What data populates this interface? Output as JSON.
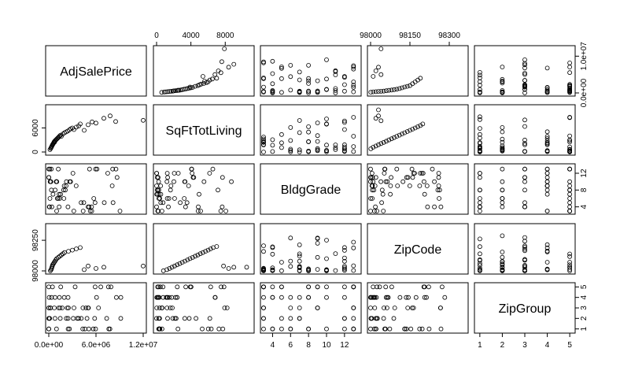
{
  "chart_data": {
    "type": "scatter",
    "subtype": "scatterplot-matrix",
    "title": "",
    "variables": [
      {
        "name": "AdjSalePrice",
        "range": [
          0,
          12000000
        ],
        "ticks": [
          0,
          6000000,
          12000000
        ],
        "tick_labels": [
          "0.0e+00",
          "6.0e+06",
          "1.2e+07"
        ],
        "axis_side": "bottom"
      },
      {
        "name": "SqFtTotLiving",
        "range": [
          0,
          11000
        ],
        "ticks": [
          0,
          4000,
          8000
        ],
        "tick_labels": [
          "0",
          "4000",
          "8000"
        ],
        "axis_side": "top"
      },
      {
        "name": "BldgGrade",
        "range": [
          3,
          13.5
        ],
        "ticks": [
          4,
          6,
          8,
          10,
          12
        ],
        "tick_labels": [
          "4",
          "6",
          "8",
          "10",
          "12"
        ],
        "axis_side": "bottom"
      },
      {
        "name": "ZipCode",
        "range": [
          98000,
          98360
        ],
        "ticks": [
          98000,
          98150,
          98300
        ],
        "tick_labels": [
          "98000",
          "98150",
          "98300"
        ],
        "axis_side": "top"
      },
      {
        "name": "ZipGroup",
        "range": [
          0.9,
          5.1
        ],
        "ticks": [
          1,
          2,
          3,
          4,
          5
        ],
        "tick_labels": [
          "1",
          "2",
          "3",
          "4",
          "5"
        ],
        "axis_side": "bottom"
      }
    ],
    "left_axes": [
      {
        "var": 1,
        "ticks": [
          0,
          6000
        ],
        "tick_labels": [
          "0",
          "6000"
        ]
      },
      {
        "var": 3,
        "ticks": [
          98000,
          98250
        ],
        "tick_labels": [
          "98000",
          "98250"
        ]
      }
    ],
    "right_axes": [
      {
        "var": 0,
        "ticks": [
          0,
          10000000
        ],
        "tick_labels": [
          "0.0e+00",
          "1.0e+07"
        ]
      },
      {
        "var": 2,
        "ticks": [
          4,
          8,
          12
        ],
        "tick_labels": [
          "4",
          "8",
          "12"
        ]
      },
      {
        "var": 4,
        "ticks": [
          1,
          2,
          3,
          4,
          5
        ],
        "tick_labels": [
          "1",
          "2",
          "3",
          "4",
          "5"
        ]
      }
    ],
    "marker": "open-circle",
    "grid": false,
    "legend": "none",
    "samples": {
      "AdjSalePrice_vs_SqFtTotLiving": [
        [
          150000,
          600
        ],
        [
          250000,
          900
        ],
        [
          300000,
          1100
        ],
        [
          350000,
          1300
        ],
        [
          400000,
          1500
        ],
        [
          450000,
          1700
        ],
        [
          500000,
          1900
        ],
        [
          550000,
          2000
        ],
        [
          600000,
          2200
        ],
        [
          650000,
          2400
        ],
        [
          700000,
          2600
        ],
        [
          750000,
          2500
        ],
        [
          800000,
          2800
        ],
        [
          900000,
          3000
        ],
        [
          1000000,
          3200
        ],
        [
          1100000,
          3400
        ],
        [
          1200000,
          3600
        ],
        [
          1300000,
          3800
        ],
        [
          1400000,
          4000
        ],
        [
          1500000,
          4200
        ],
        [
          1600000,
          3900
        ],
        [
          1800000,
          4500
        ],
        [
          2000000,
          4800
        ],
        [
          2200000,
          5000
        ],
        [
          2400000,
          5200
        ],
        [
          2600000,
          5500
        ],
        [
          2800000,
          5800
        ],
        [
          3000000,
          6000
        ],
        [
          3200000,
          5600
        ],
        [
          3500000,
          6200
        ],
        [
          3800000,
          6500
        ],
        [
          4000000,
          7000
        ],
        [
          4500000,
          5400
        ],
        [
          5000000,
          6800
        ],
        [
          5500000,
          7500
        ],
        [
          6000000,
          7200
        ],
        [
          7000000,
          8400
        ],
        [
          7800000,
          9000
        ],
        [
          8500000,
          7600
        ],
        [
          12000000,
          7900
        ]
      ],
      "AdjSalePrice_vs_ZipCode": [
        [
          200000,
          98001
        ],
        [
          300000,
          98010
        ],
        [
          350000,
          98020
        ],
        [
          400000,
          98030
        ],
        [
          450000,
          98040
        ],
        [
          500000,
          98050
        ],
        [
          600000,
          98060
        ],
        [
          700000,
          98070
        ],
        [
          800000,
          98080
        ],
        [
          900000,
          98090
        ],
        [
          1000000,
          98100
        ],
        [
          1200000,
          98110
        ],
        [
          1400000,
          98120
        ],
        [
          1600000,
          98130
        ],
        [
          1800000,
          98140
        ],
        [
          2000000,
          98150
        ],
        [
          2500000,
          98160
        ],
        [
          3000000,
          98170
        ],
        [
          3500000,
          98180
        ],
        [
          4000000,
          98190
        ],
        [
          4500000,
          98010
        ],
        [
          5000000,
          98040
        ],
        [
          6000000,
          98020
        ],
        [
          7000000,
          98030
        ],
        [
          12000000,
          98040
        ]
      ],
      "SqFtTotLiving_vs_ZipCode": [
        [
          800,
          98001
        ],
        [
          1200,
          98010
        ],
        [
          1500,
          98020
        ],
        [
          1800,
          98030
        ],
        [
          2100,
          98040
        ],
        [
          2400,
          98050
        ],
        [
          2700,
          98060
        ],
        [
          3000,
          98070
        ],
        [
          3300,
          98080
        ],
        [
          3600,
          98090
        ],
        [
          3900,
          98100
        ],
        [
          4200,
          98110
        ],
        [
          4500,
          98120
        ],
        [
          4800,
          98130
        ],
        [
          5100,
          98140
        ],
        [
          5400,
          98150
        ],
        [
          5700,
          98160
        ],
        [
          6000,
          98170
        ],
        [
          6300,
          98180
        ],
        [
          6600,
          98190
        ],
        [
          7000,
          98199
        ],
        [
          7800,
          98040
        ],
        [
          8400,
          98020
        ],
        [
          9000,
          98030
        ],
        [
          10500,
          98030
        ]
      ]
    }
  }
}
